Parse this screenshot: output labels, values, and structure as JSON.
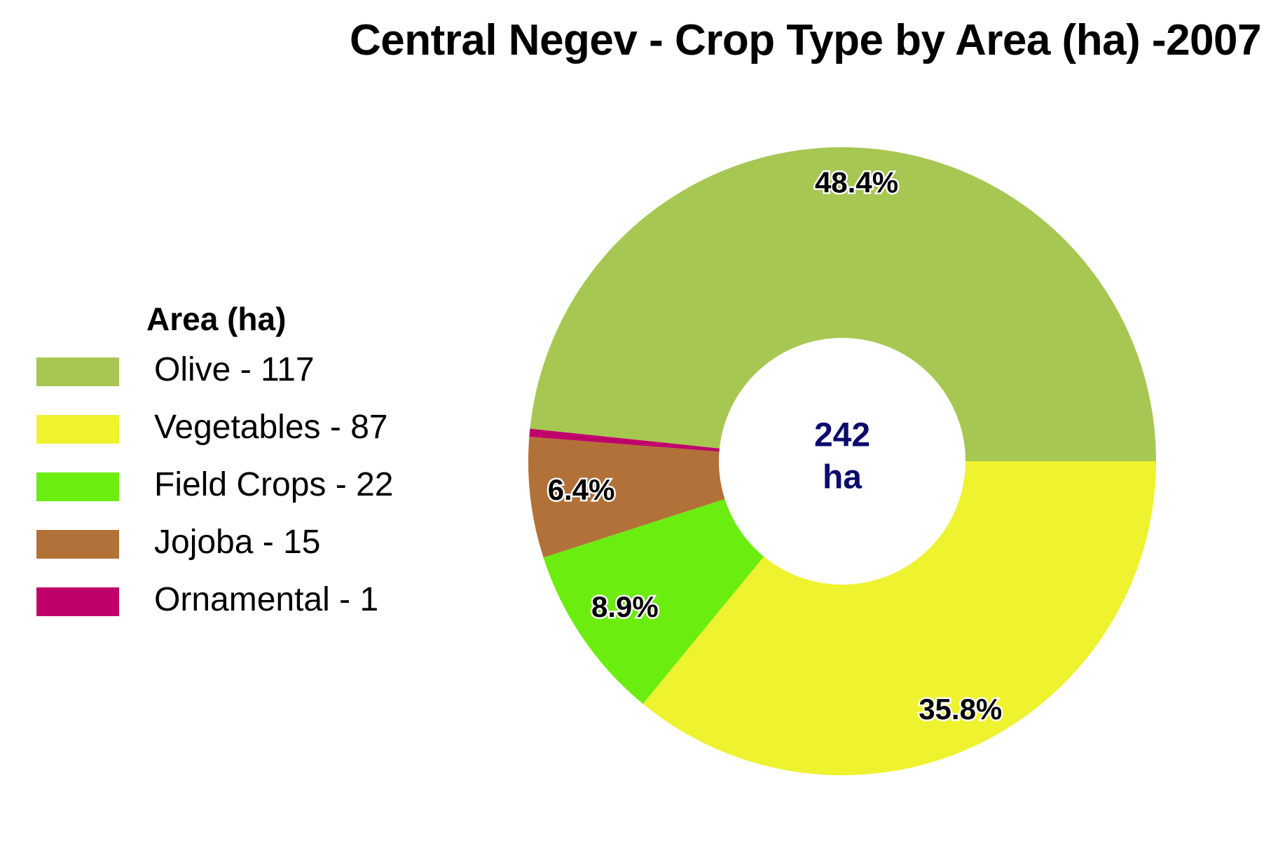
{
  "chart_data": {
    "type": "pie",
    "title": "Central Negev - Crop Type by Area (ha) -2007",
    "legend_title": "Area (ha)",
    "legend_position": "left",
    "center_total": "242",
    "center_unit": "ha",
    "slices": [
      {
        "legend_label": "Olive - 117",
        "value": 117,
        "percent_label": "48.4%",
        "color": "#a6c752"
      },
      {
        "legend_label": "Vegetables - 87",
        "value": 87,
        "percent_label": "35.8%",
        "color": "#eef22f"
      },
      {
        "legend_label": "Field Crops - 22",
        "value": 22,
        "percent_label": "8.9%",
        "color": "#6ced10"
      },
      {
        "legend_label": "Jojoba - 15",
        "value": 15,
        "percent_label": "6.4%",
        "color": "#b27138"
      },
      {
        "legend_label": "Ornamental - 1",
        "value": 1,
        "percent_label": "",
        "color": "#c0006a"
      }
    ]
  }
}
